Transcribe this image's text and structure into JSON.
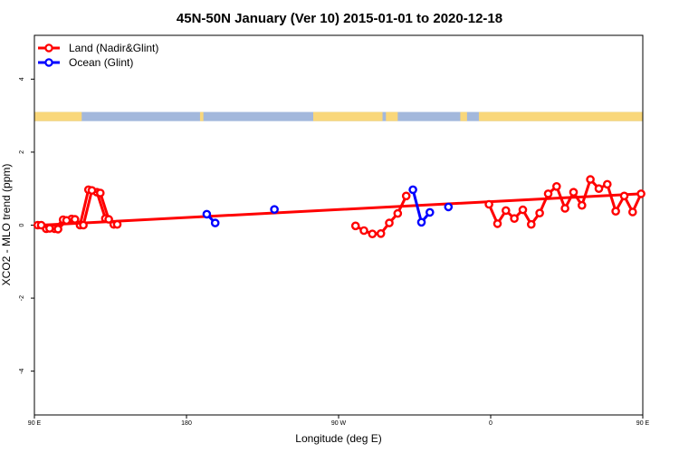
{
  "chart_data": {
    "type": "line",
    "title": "45N-50N January (Ver 10)   2015-01-01 to 2020-12-18",
    "xlabel": "Longitude (deg E)",
    "ylabel": "XCO2 - MLO trend (ppm)",
    "xlim": [
      90,
      450
    ],
    "ylim": [
      -5.2,
      5.2
    ],
    "x_ticks": [
      {
        "value": 90,
        "label": "90 E"
      },
      {
        "value": 180,
        "label": "180"
      },
      {
        "value": 270,
        "label": "90 W"
      },
      {
        "value": 360,
        "label": "0"
      },
      {
        "value": 450,
        "label": "90 E"
      },
      {
        "value": 540,
        "label": "180"
      }
    ],
    "y_ticks": [
      {
        "value": -4,
        "label": "-4"
      },
      {
        "value": -2,
        "label": "-2"
      },
      {
        "value": 0,
        "label": "0"
      },
      {
        "value": 2,
        "label": "2"
      },
      {
        "value": 4,
        "label": "4"
      }
    ],
    "grid": false,
    "legend_position": "top-left",
    "colors": {
      "land": "#ff0000",
      "ocean": "#0000ff",
      "map_land": "#f9d77a",
      "map_ocean": "#a3b8dc"
    },
    "series": [
      {
        "name": "Land (Nadir&Glint)",
        "color": "#ff0000",
        "segments": [
          [
            [
              92,
              0
            ],
            [
              97,
              -0.1
            ],
            [
              102,
              -0.1
            ],
            [
              107,
              0.15
            ],
            [
              112,
              0.17
            ],
            [
              117,
              0
            ],
            [
              122,
              0.97
            ],
            [
              127,
              0.9
            ],
            [
              132,
              0.18
            ],
            [
              137,
              0.02
            ]
          ],
          [
            [
              280,
              -0.02
            ],
            [
              285,
              -0.15
            ],
            [
              290,
              -0.24
            ],
            [
              295,
              -0.23
            ],
            [
              300,
              0.06
            ],
            [
              305,
              0.32
            ],
            [
              310,
              0.8
            ]
          ],
          [
            [
              359,
              0.57
            ],
            [
              364,
              0.04
            ],
            [
              369,
              0.4
            ],
            [
              374,
              0.18
            ],
            [
              379,
              0.42
            ],
            [
              384,
              0.02
            ],
            [
              389,
              0.33
            ],
            [
              394,
              0.86
            ],
            [
              399,
              1.06
            ],
            [
              404,
              0.46
            ],
            [
              409,
              0.9
            ],
            [
              414,
              0.54
            ],
            [
              419,
              1.25
            ],
            [
              424,
              1.0
            ],
            [
              429,
              1.12
            ],
            [
              434,
              0.38
            ],
            [
              439,
              0.8
            ],
            [
              444,
              0.36
            ],
            [
              449,
              0.86
            ],
            [
              454,
              0
            ],
            [
              459,
              -0.09
            ],
            [
              464,
              -0.11
            ],
            [
              469,
              0.13
            ],
            [
              474,
              0.16
            ],
            [
              479,
              0
            ],
            [
              484,
              0.95
            ],
            [
              489,
              0.88
            ],
            [
              494,
              0.16
            ],
            [
              499,
              0.02
            ]
          ]
        ]
      },
      {
        "name": "Ocean (Glint)",
        "color": "#0000ff",
        "segments": [
          [
            [
              192,
              0.3
            ],
            [
              197,
              0.06
            ]
          ],
          [
            [
              232,
              0.43
            ]
          ],
          [
            [
              314,
              0.97
            ],
            [
              319,
              0.08
            ],
            [
              324,
              0.35
            ]
          ],
          [
            [
              335,
              0.5
            ]
          ]
        ]
      }
    ],
    "map_band": {
      "y_from": 2.85,
      "y_to": 3.1
    }
  }
}
